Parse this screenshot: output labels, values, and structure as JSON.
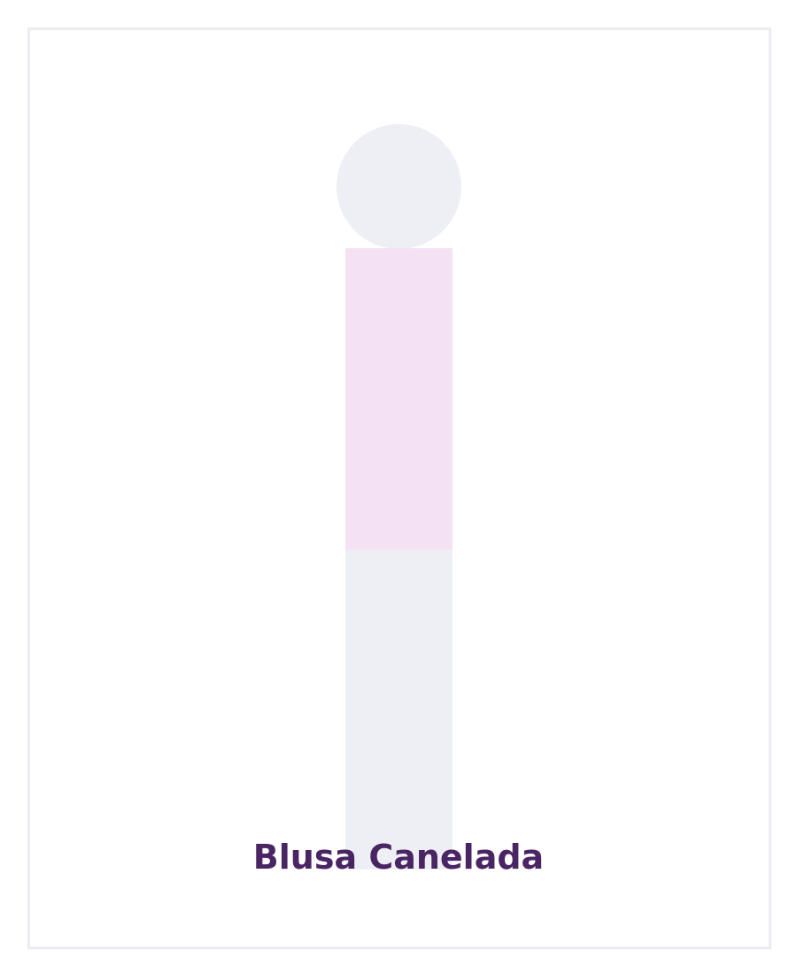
{
  "product": {
    "name": "Blusa Canelada"
  },
  "colors": {
    "frame_border": "#ebebf3",
    "head": "#eeeff4",
    "torso": "#f4e2f4",
    "legs": "#eeeff4",
    "title": "#4a2563"
  },
  "icons": {
    "figure": "mannequin-silhouette"
  }
}
